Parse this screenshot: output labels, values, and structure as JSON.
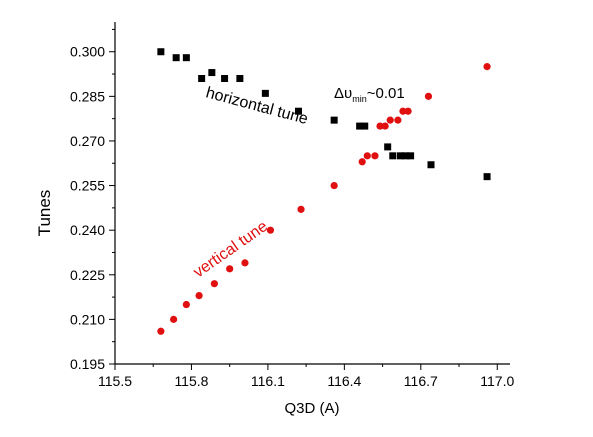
{
  "chart_data": {
    "type": "scatter",
    "xlabel": "Q3D (A)",
    "ylabel": "Tunes",
    "xlim": [
      115.5,
      117.05
    ],
    "ylim": [
      0.195,
      0.31
    ],
    "x_ticks": [
      115.5,
      115.8,
      116.1,
      116.4,
      116.7,
      117.0
    ],
    "x_tick_labels": [
      "115.5",
      "115.8",
      "116.1",
      "116.4",
      "116.7",
      "117.0"
    ],
    "y_ticks": [
      0.195,
      0.21,
      0.225,
      0.24,
      0.255,
      0.27,
      0.285,
      0.3
    ],
    "y_tick_labels": [
      "0.195",
      "0.210",
      "0.225",
      "0.240",
      "0.255",
      "0.270",
      "0.285",
      "0.300"
    ],
    "grid": false,
    "series": [
      {
        "label": "horizontal tune",
        "marker": "square",
        "color": "#000000",
        "points": [
          [
            115.68,
            0.3
          ],
          [
            115.74,
            0.298
          ],
          [
            115.78,
            0.298
          ],
          [
            115.84,
            0.291
          ],
          [
            115.88,
            0.293
          ],
          [
            115.93,
            0.291
          ],
          [
            115.99,
            0.291
          ],
          [
            116.09,
            0.286
          ],
          [
            116.22,
            0.28
          ],
          [
            116.36,
            0.277
          ],
          [
            116.46,
            0.275
          ],
          [
            116.48,
            0.275
          ],
          [
            116.57,
            0.268
          ],
          [
            116.59,
            0.265
          ],
          [
            116.62,
            0.265
          ],
          [
            116.64,
            0.265
          ],
          [
            116.66,
            0.265
          ],
          [
            116.74,
            0.262
          ],
          [
            116.96,
            0.258
          ]
        ]
      },
      {
        "label": "vertical tune",
        "marker": "circle",
        "color": "#e01010",
        "points": [
          [
            115.68,
            0.206
          ],
          [
            115.73,
            0.21
          ],
          [
            115.78,
            0.215
          ],
          [
            115.83,
            0.218
          ],
          [
            115.89,
            0.222
          ],
          [
            115.95,
            0.227
          ],
          [
            116.01,
            0.229
          ],
          [
            116.11,
            0.24
          ],
          [
            116.23,
            0.247
          ],
          [
            116.36,
            0.255
          ],
          [
            116.47,
            0.263
          ],
          [
            116.49,
            0.265
          ],
          [
            116.52,
            0.265
          ],
          [
            116.54,
            0.275
          ],
          [
            116.56,
            0.275
          ],
          [
            116.58,
            0.277
          ],
          [
            116.61,
            0.277
          ],
          [
            116.63,
            0.28
          ],
          [
            116.65,
            0.28
          ],
          [
            116.73,
            0.285
          ],
          [
            116.96,
            0.295
          ]
        ]
      }
    ],
    "annotations": {
      "horizontal": "horizontal tune",
      "vertical": "vertical tune",
      "delta_prefix": "Δυ",
      "delta_sub": "min",
      "delta_suffix": "~0.01"
    }
  }
}
